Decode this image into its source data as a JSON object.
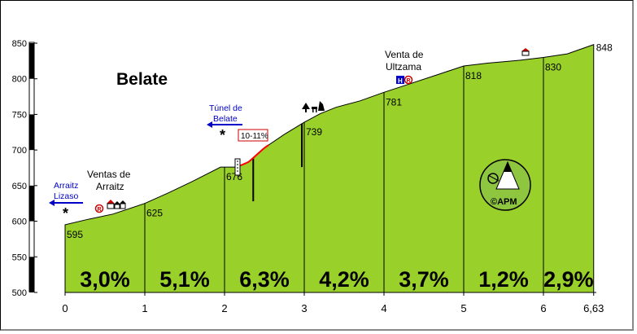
{
  "chart_data": {
    "type": "area",
    "title": "Belate",
    "xlabel": "",
    "ylabel": "",
    "xlim": [
      0,
      6.63
    ],
    "ylim": [
      500,
      850
    ],
    "x_ticks": [
      "0",
      "1",
      "2",
      "3",
      "4",
      "5",
      "6",
      "6,63"
    ],
    "y_ticks": [
      "500",
      "550",
      "600",
      "650",
      "700",
      "750",
      "800",
      "850"
    ],
    "profile": [
      {
        "x": 0.0,
        "y": 595
      },
      {
        "x": 0.3,
        "y": 603
      },
      {
        "x": 0.6,
        "y": 610
      },
      {
        "x": 1.0,
        "y": 625
      },
      {
        "x": 1.3,
        "y": 640
      },
      {
        "x": 1.6,
        "y": 656
      },
      {
        "x": 1.95,
        "y": 676
      },
      {
        "x": 2.15,
        "y": 676
      },
      {
        "x": 2.3,
        "y": 683
      },
      {
        "x": 2.5,
        "y": 703
      },
      {
        "x": 2.75,
        "y": 722
      },
      {
        "x": 3.0,
        "y": 739
      },
      {
        "x": 3.2,
        "y": 751
      },
      {
        "x": 3.4,
        "y": 760
      },
      {
        "x": 3.7,
        "y": 769
      },
      {
        "x": 4.0,
        "y": 781
      },
      {
        "x": 4.3,
        "y": 792
      },
      {
        "x": 4.65,
        "y": 805
      },
      {
        "x": 5.0,
        "y": 818
      },
      {
        "x": 5.3,
        "y": 822
      },
      {
        "x": 5.7,
        "y": 826
      },
      {
        "x": 6.0,
        "y": 830
      },
      {
        "x": 6.3,
        "y": 835
      },
      {
        "x": 6.63,
        "y": 848
      }
    ],
    "segments": [
      {
        "from": 0,
        "to": 1,
        "grade": "3,0%"
      },
      {
        "from": 1,
        "to": 2,
        "grade": "5,1%"
      },
      {
        "from": 2,
        "to": 3,
        "grade": "6,3%"
      },
      {
        "from": 3,
        "to": 4,
        "grade": "4,2%"
      },
      {
        "from": 4,
        "to": 5,
        "grade": "3,7%"
      },
      {
        "from": 5,
        "to": 6,
        "grade": "1,2%"
      },
      {
        "from": 6,
        "to": 6.63,
        "grade": "2,9%"
      }
    ],
    "elevation_labels": [
      {
        "x": 0,
        "y": 595,
        "text": "595"
      },
      {
        "x": 1,
        "y": 625,
        "text": "625"
      },
      {
        "x": 2,
        "y": 676,
        "text": "676"
      },
      {
        "x": 3,
        "y": 739,
        "text": "739"
      },
      {
        "x": 4,
        "y": 781,
        "text": "781"
      },
      {
        "x": 5,
        "y": 818,
        "text": "818"
      },
      {
        "x": 6,
        "y": 830,
        "text": "830"
      },
      {
        "x": 6.63,
        "y": 848,
        "text": "848"
      }
    ],
    "steep_section": {
      "x_from": 2.2,
      "x_to": 2.55,
      "label": "10-11%"
    },
    "annotations": {
      "ventas": [
        "Ventas de",
        "Arraitz"
      ],
      "venta": [
        "Venta de",
        "Ultzama"
      ],
      "arraitz_link": [
        "Arraitz",
        "Lizaso"
      ],
      "tunel_link": [
        "Túnel de",
        "Belate"
      ],
      "logo": "©APM",
      "star": "*"
    },
    "colors": {
      "fill": "#99d12a",
      "segment_line": "#000000",
      "link": "#0000c8",
      "steep": "#ff0000",
      "logo_fill": "#8ec63f"
    }
  }
}
